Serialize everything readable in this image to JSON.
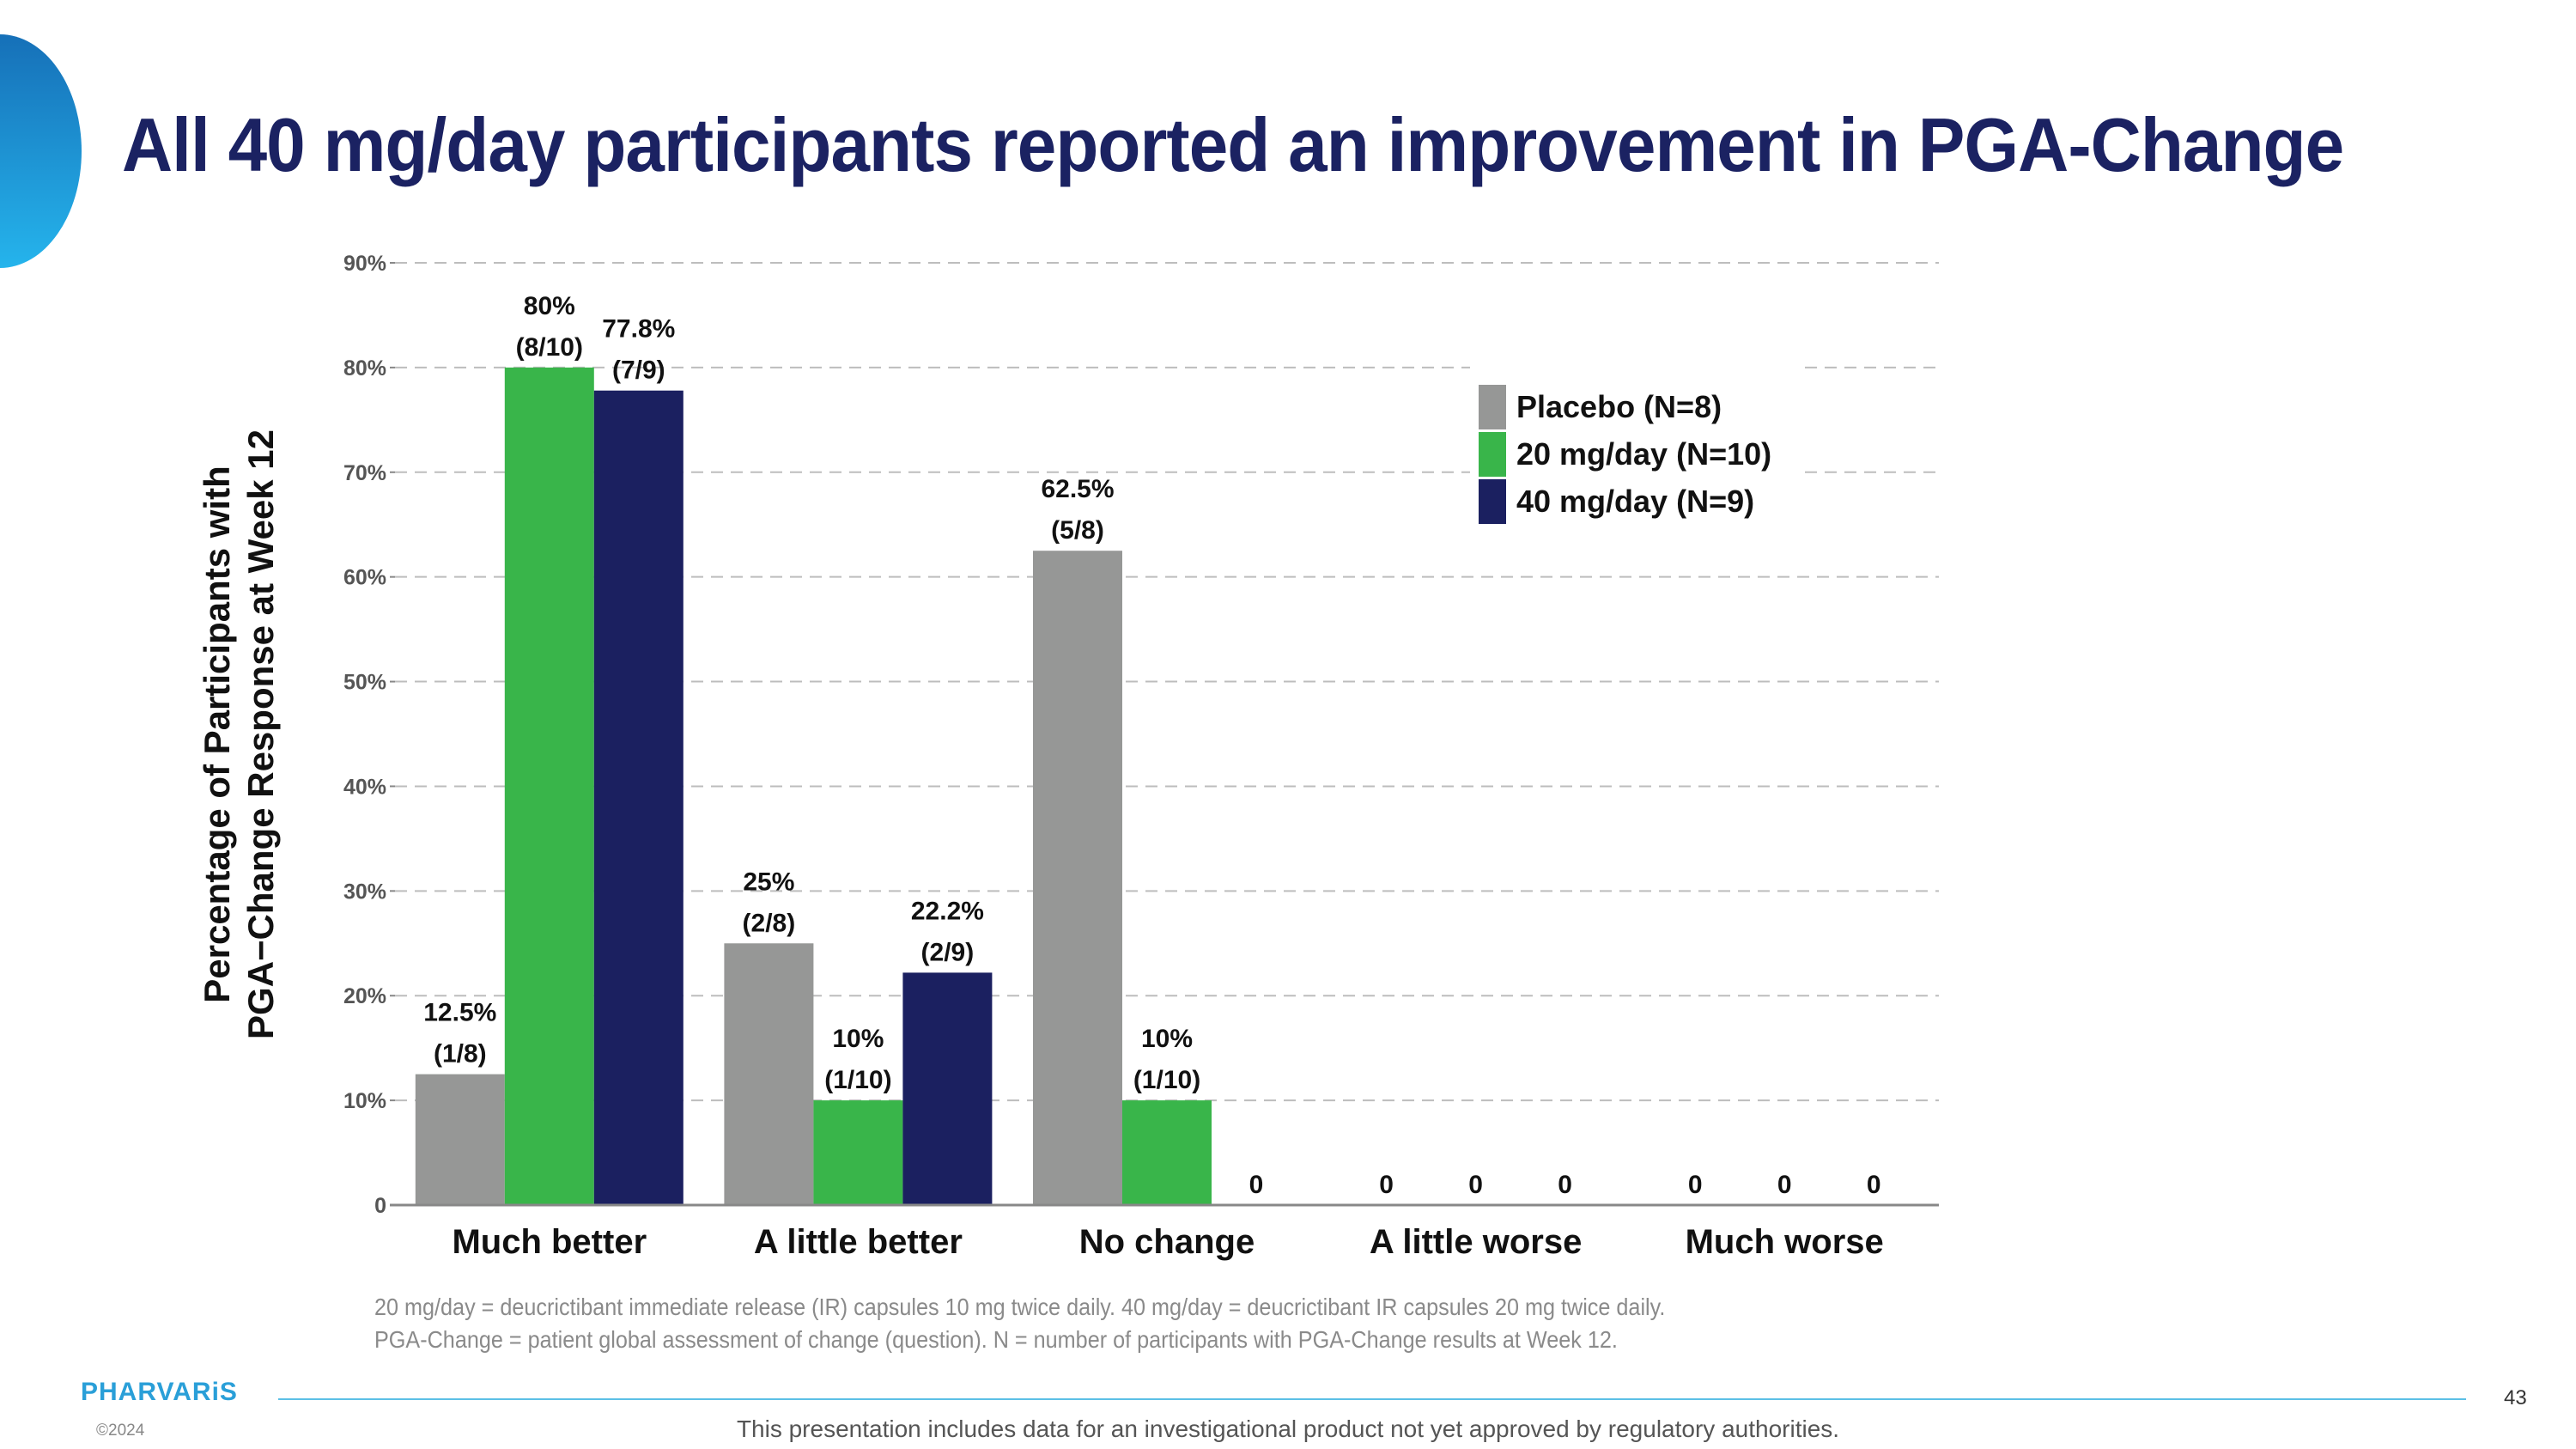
{
  "slide": {
    "title": "All 40 mg/day participants reported an improvement in PGA-Change",
    "footnote_line1": "20 mg/day = deucrictibant immediate release (IR) capsules 10 mg twice daily. 40 mg/day = deucrictibant IR capsules 20 mg twice daily.",
    "footnote_line2": "PGA-Change = patient global assessment of change (question). N = number of participants with PGA-Change results at Week 12.",
    "logo_text": "PHARVARiS",
    "copyright": "©2024",
    "page_number": "43",
    "disclaimer": "This presentation includes data for an investigational product not yet approved by regulatory authorities."
  },
  "colors": {
    "title": "#1b2262",
    "accent": "#1e9ad6",
    "placebo": "#969796",
    "dose20": "#39b54a",
    "dose40": "#1b2060"
  },
  "chart_data": {
    "type": "bar",
    "ylabel_line1": "Percentage of Participants with",
    "ylabel_line2": "PGA−Change Response at Week 12",
    "xlabel": "",
    "categories": [
      "Much better",
      "A little better",
      "No change",
      "A little worse",
      "Much worse"
    ],
    "ylim": [
      0,
      90
    ],
    "yticks": [
      0,
      10,
      20,
      30,
      40,
      50,
      60,
      70,
      80,
      90
    ],
    "ytick_labels": [
      "0",
      "10%",
      "20%",
      "30%",
      "40%",
      "50%",
      "60%",
      "70%",
      "80%",
      "90%"
    ],
    "grid": true,
    "legend_position": "top-right",
    "series": [
      {
        "name": "Placebo (N=8)",
        "color": "#969796",
        "values": [
          12.5,
          25,
          62.5,
          0,
          0
        ],
        "labels": [
          [
            "12.5%",
            "(1/8)"
          ],
          [
            "25%",
            "(2/8)"
          ],
          [
            "62.5%",
            "(5/8)"
          ],
          [
            "0"
          ],
          [
            "0"
          ]
        ]
      },
      {
        "name": "20 mg/day (N=10)",
        "color": "#39b54a",
        "values": [
          80,
          10,
          10,
          0,
          0
        ],
        "labels": [
          [
            "80%",
            "(8/10)"
          ],
          [
            "10%",
            "(1/10)"
          ],
          [
            "10%",
            "(1/10)"
          ],
          [
            "0"
          ],
          [
            "0"
          ]
        ]
      },
      {
        "name": "40 mg/day (N=9)",
        "color": "#1b2060",
        "values": [
          77.8,
          22.2,
          0,
          0,
          0
        ],
        "labels": [
          [
            "77.8%",
            "(7/9)"
          ],
          [
            "22.2%",
            "(2/9)"
          ],
          [
            "0"
          ],
          [
            "0"
          ],
          [
            "0"
          ]
        ]
      }
    ]
  }
}
